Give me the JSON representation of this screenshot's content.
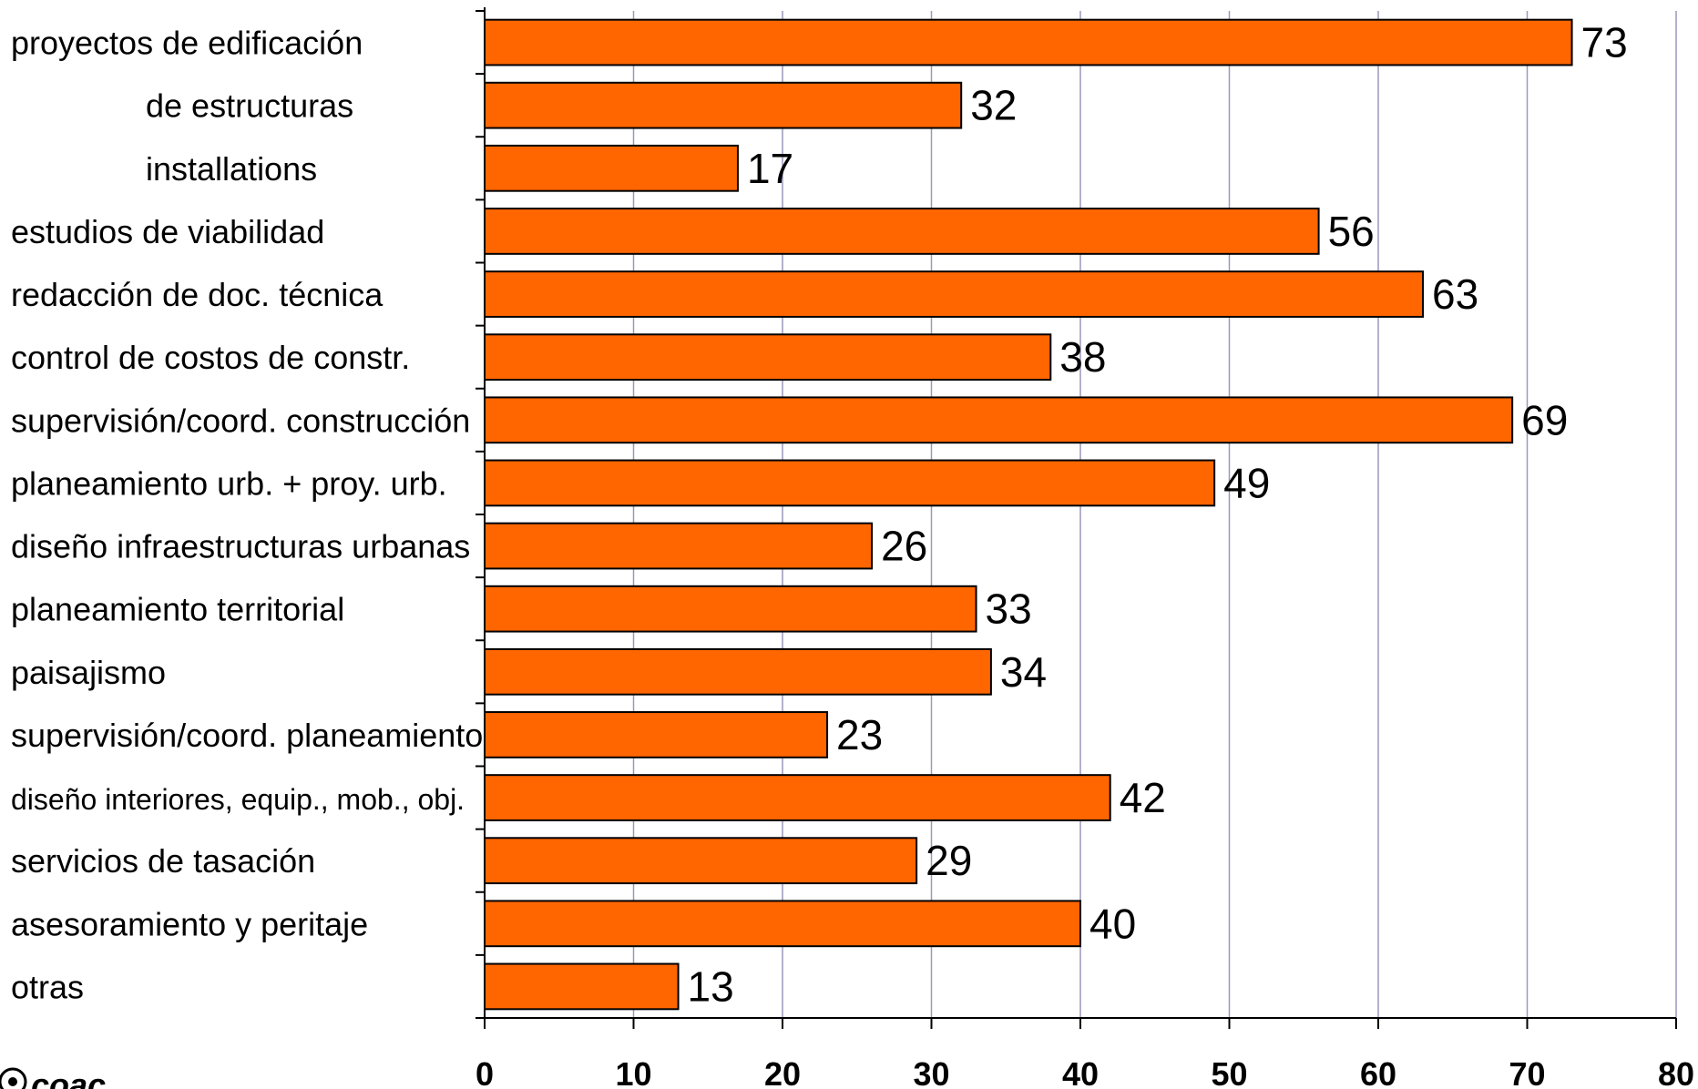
{
  "chart_data": {
    "type": "bar",
    "orientation": "horizontal",
    "categories": [
      "proyectos de edificación",
      "de estructuras",
      "installations",
      "estudios de viabilidad",
      "redacción de doc. técnica",
      "control de costos de constr.",
      "supervisión/coord. construcción",
      "planeamiento urb. + proy. urb.",
      "diseño infraestructuras urbanas",
      "planeamiento territorial",
      "paisajismo",
      "supervisión/coord. planeamiento",
      "diseño interiores, equip., mob., obj.",
      "servicios de tasación",
      "asesoramiento y peritaje",
      "otras"
    ],
    "indented_categories": [
      1,
      2
    ],
    "values": [
      73,
      32,
      17,
      56,
      63,
      38,
      69,
      49,
      26,
      33,
      34,
      23,
      42,
      29,
      40,
      13
    ],
    "xlim": [
      0,
      80
    ],
    "xticks": [
      0,
      10,
      20,
      30,
      40,
      50,
      60,
      70,
      80
    ],
    "grid": "vertical",
    "bar_color": "#ff6600",
    "bar_edge_color": "#000000",
    "grid_color": "#9999bb",
    "title": "",
    "xlabel": "",
    "ylabel": ""
  },
  "logo": {
    "icon": "gear-seal-icon",
    "text": "coac"
  }
}
